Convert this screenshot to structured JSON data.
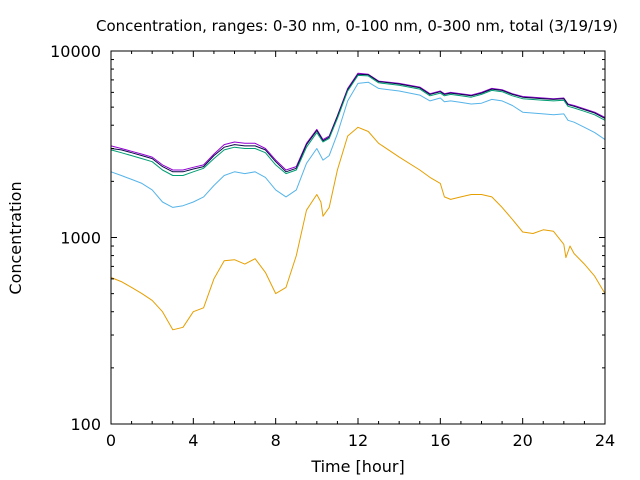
{
  "chart_data": {
    "type": "line",
    "title": "Concentration, ranges: 0-30 nm, 0-100 nm, 0-300 nm, total (3/19/19)",
    "xlabel": "Time [hour]",
    "ylabel": "Concentration",
    "xlim": [
      0,
      24
    ],
    "ylim": [
      100,
      10000
    ],
    "yscale": "log",
    "grid": false,
    "legend": "none",
    "x_ticks": [
      0,
      4,
      8,
      12,
      16,
      20,
      24
    ],
    "x_tick_labels": [
      "0",
      "4",
      "8",
      "12",
      "16",
      "20",
      "24"
    ],
    "y_ticks": [
      100,
      1000,
      10000
    ],
    "y_tick_labels": [
      "100",
      "1000",
      "10000"
    ],
    "series": [
      {
        "color": "#9400d3",
        "points": [
          [
            0,
            3100
          ],
          [
            0.5,
            3000
          ],
          [
            1,
            2900
          ],
          [
            1.5,
            2800
          ],
          [
            2,
            2700
          ],
          [
            2.5,
            2450
          ],
          [
            3,
            2300
          ],
          [
            3.5,
            2300
          ],
          [
            4,
            2380
          ],
          [
            4.5,
            2450
          ],
          [
            5,
            2800
          ],
          [
            5.5,
            3150
          ],
          [
            6,
            3250
          ],
          [
            6.5,
            3200
          ],
          [
            7,
            3200
          ],
          [
            7.5,
            3000
          ],
          [
            8,
            2600
          ],
          [
            8.5,
            2300
          ],
          [
            9,
            2400
          ],
          [
            9.5,
            3200
          ],
          [
            10,
            3800
          ],
          [
            10.3,
            3350
          ],
          [
            10.6,
            3500
          ],
          [
            11,
            4500
          ],
          [
            11.5,
            6300
          ],
          [
            12,
            7600
          ],
          [
            12.5,
            7500
          ],
          [
            13,
            6900
          ],
          [
            14,
            6700
          ],
          [
            15,
            6400
          ],
          [
            15.5,
            5900
          ],
          [
            16,
            6100
          ],
          [
            16.2,
            5900
          ],
          [
            16.5,
            6000
          ],
          [
            17,
            5900
          ],
          [
            17.5,
            5800
          ],
          [
            18,
            6000
          ],
          [
            18.5,
            6300
          ],
          [
            19,
            6200
          ],
          [
            19.5,
            5900
          ],
          [
            20,
            5700
          ],
          [
            21,
            5600
          ],
          [
            21.5,
            5550
          ],
          [
            22,
            5600
          ],
          [
            22.2,
            5200
          ],
          [
            22.5,
            5100
          ],
          [
            23,
            4900
          ],
          [
            23.5,
            4700
          ],
          [
            24,
            4400
          ]
        ]
      },
      {
        "color": "#0b0b4a",
        "points": [
          [
            0,
            3000
          ],
          [
            0.5,
            2950
          ],
          [
            1,
            2850
          ],
          [
            1.5,
            2750
          ],
          [
            2,
            2650
          ],
          [
            2.5,
            2400
          ],
          [
            3,
            2250
          ],
          [
            3.5,
            2250
          ],
          [
            4,
            2330
          ],
          [
            4.5,
            2400
          ],
          [
            5,
            2750
          ],
          [
            5.5,
            3050
          ],
          [
            6,
            3150
          ],
          [
            6.5,
            3100
          ],
          [
            7,
            3100
          ],
          [
            7.5,
            2950
          ],
          [
            8,
            2550
          ],
          [
            8.5,
            2250
          ],
          [
            9,
            2350
          ],
          [
            9.5,
            3150
          ],
          [
            10,
            3750
          ],
          [
            10.3,
            3300
          ],
          [
            10.6,
            3450
          ],
          [
            11,
            4450
          ],
          [
            11.5,
            6200
          ],
          [
            12,
            7500
          ],
          [
            12.5,
            7450
          ],
          [
            13,
            6850
          ],
          [
            14,
            6650
          ],
          [
            15,
            6350
          ],
          [
            15.5,
            5850
          ],
          [
            16,
            6050
          ],
          [
            16.2,
            5850
          ],
          [
            16.5,
            5950
          ],
          [
            17,
            5850
          ],
          [
            17.5,
            5750
          ],
          [
            18,
            5950
          ],
          [
            18.5,
            6250
          ],
          [
            19,
            6150
          ],
          [
            19.5,
            5850
          ],
          [
            20,
            5650
          ],
          [
            21,
            5550
          ],
          [
            21.5,
            5500
          ],
          [
            22,
            5550
          ],
          [
            22.2,
            5150
          ],
          [
            22.5,
            5050
          ],
          [
            23,
            4850
          ],
          [
            23.5,
            4650
          ],
          [
            24,
            4350
          ]
        ]
      },
      {
        "color": "#009e73",
        "points": [
          [
            0,
            2950
          ],
          [
            0.5,
            2850
          ],
          [
            1,
            2750
          ],
          [
            1.5,
            2650
          ],
          [
            2,
            2550
          ],
          [
            2.5,
            2300
          ],
          [
            3,
            2150
          ],
          [
            3.5,
            2150
          ],
          [
            4,
            2250
          ],
          [
            4.5,
            2350
          ],
          [
            5,
            2650
          ],
          [
            5.5,
            2950
          ],
          [
            6,
            3050
          ],
          [
            6.5,
            3000
          ],
          [
            7,
            3000
          ],
          [
            7.5,
            2850
          ],
          [
            8,
            2450
          ],
          [
            8.5,
            2200
          ],
          [
            9,
            2300
          ],
          [
            9.5,
            3050
          ],
          [
            10,
            3650
          ],
          [
            10.3,
            3250
          ],
          [
            10.6,
            3400
          ],
          [
            11,
            4350
          ],
          [
            11.5,
            6100
          ],
          [
            12,
            7400
          ],
          [
            12.5,
            7350
          ],
          [
            13,
            6750
          ],
          [
            14,
            6550
          ],
          [
            15,
            6250
          ],
          [
            15.5,
            5750
          ],
          [
            16,
            5950
          ],
          [
            16.2,
            5750
          ],
          [
            16.5,
            5850
          ],
          [
            17,
            5750
          ],
          [
            17.5,
            5650
          ],
          [
            18,
            5850
          ],
          [
            18.5,
            6150
          ],
          [
            19,
            6050
          ],
          [
            19.5,
            5750
          ],
          [
            20,
            5550
          ],
          [
            21,
            5450
          ],
          [
            21.5,
            5400
          ],
          [
            22,
            5450
          ],
          [
            22.2,
            5050
          ],
          [
            22.5,
            4950
          ],
          [
            23,
            4750
          ],
          [
            23.5,
            4550
          ],
          [
            24,
            4250
          ]
        ]
      },
      {
        "color": "#56b4e9",
        "points": [
          [
            0,
            2250
          ],
          [
            0.5,
            2150
          ],
          [
            1,
            2050
          ],
          [
            1.5,
            1950
          ],
          [
            2,
            1800
          ],
          [
            2.5,
            1550
          ],
          [
            3,
            1450
          ],
          [
            3.5,
            1480
          ],
          [
            4,
            1550
          ],
          [
            4.5,
            1650
          ],
          [
            5,
            1900
          ],
          [
            5.5,
            2150
          ],
          [
            6,
            2250
          ],
          [
            6.5,
            2200
          ],
          [
            7,
            2250
          ],
          [
            7.5,
            2100
          ],
          [
            8,
            1800
          ],
          [
            8.5,
            1650
          ],
          [
            9,
            1800
          ],
          [
            9.5,
            2500
          ],
          [
            10,
            3000
          ],
          [
            10.3,
            2600
          ],
          [
            10.6,
            2750
          ],
          [
            11,
            3600
          ],
          [
            11.5,
            5400
          ],
          [
            12,
            6700
          ],
          [
            12.5,
            6800
          ],
          [
            13,
            6300
          ],
          [
            14,
            6100
          ],
          [
            15,
            5800
          ],
          [
            15.5,
            5400
          ],
          [
            16,
            5600
          ],
          [
            16.2,
            5350
          ],
          [
            16.5,
            5400
          ],
          [
            17,
            5300
          ],
          [
            17.5,
            5200
          ],
          [
            18,
            5250
          ],
          [
            18.5,
            5500
          ],
          [
            19,
            5400
          ],
          [
            19.5,
            5100
          ],
          [
            20,
            4700
          ],
          [
            21,
            4600
          ],
          [
            21.5,
            4550
          ],
          [
            22,
            4600
          ],
          [
            22.2,
            4250
          ],
          [
            22.5,
            4150
          ],
          [
            23,
            3900
          ],
          [
            23.5,
            3650
          ],
          [
            24,
            3350
          ]
        ]
      },
      {
        "color": "#e69f00",
        "points": [
          [
            0,
            610
          ],
          [
            0.5,
            580
          ],
          [
            1,
            540
          ],
          [
            1.5,
            500
          ],
          [
            2,
            460
          ],
          [
            2.5,
            400
          ],
          [
            3,
            320
          ],
          [
            3.5,
            330
          ],
          [
            4,
            400
          ],
          [
            4.5,
            420
          ],
          [
            5,
            600
          ],
          [
            5.5,
            750
          ],
          [
            6,
            760
          ],
          [
            6.5,
            720
          ],
          [
            7,
            770
          ],
          [
            7.5,
            650
          ],
          [
            8,
            500
          ],
          [
            8.5,
            540
          ],
          [
            9,
            800
          ],
          [
            9.5,
            1400
          ],
          [
            10,
            1700
          ],
          [
            10.2,
            1550
          ],
          [
            10.3,
            1300
          ],
          [
            10.6,
            1450
          ],
          [
            11,
            2300
          ],
          [
            11.5,
            3500
          ],
          [
            12,
            3900
          ],
          [
            12.5,
            3700
          ],
          [
            13,
            3200
          ],
          [
            14,
            2700
          ],
          [
            15,
            2300
          ],
          [
            15.5,
            2100
          ],
          [
            16,
            1950
          ],
          [
            16.2,
            1650
          ],
          [
            16.5,
            1600
          ],
          [
            17,
            1650
          ],
          [
            17.5,
            1700
          ],
          [
            18,
            1700
          ],
          [
            18.5,
            1650
          ],
          [
            19,
            1450
          ],
          [
            19.5,
            1250
          ],
          [
            20,
            1070
          ],
          [
            20.5,
            1050
          ],
          [
            21,
            1100
          ],
          [
            21.5,
            1080
          ],
          [
            22,
            920
          ],
          [
            22.1,
            780
          ],
          [
            22.3,
            900
          ],
          [
            22.5,
            820
          ],
          [
            23,
            720
          ],
          [
            23.5,
            620
          ],
          [
            24,
            500
          ]
        ]
      }
    ]
  }
}
